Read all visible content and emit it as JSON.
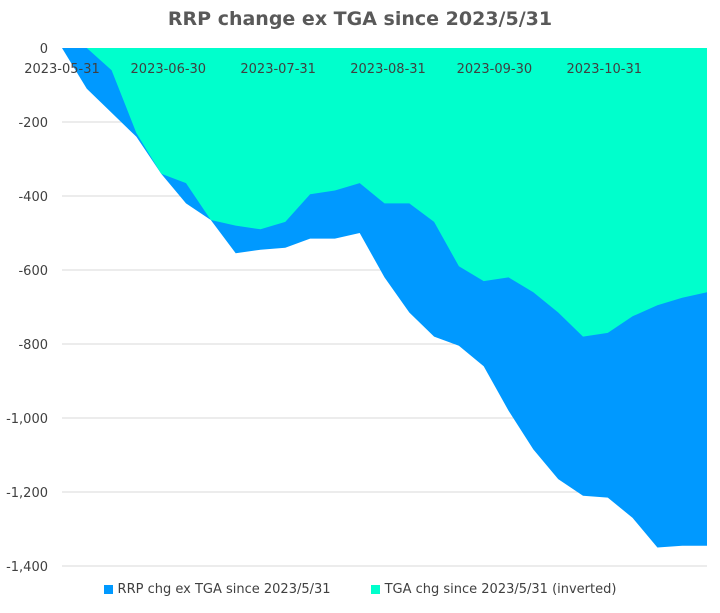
{
  "chart_data": {
    "type": "area",
    "title": "RRP change ex TGA since 2023/5/31",
    "xlabel": "",
    "ylabel": "",
    "ylim": [
      -1400,
      0
    ],
    "yticks": [
      0,
      -200,
      -400,
      -600,
      -800,
      -1000,
      -1200,
      -1400
    ],
    "ytick_labels": [
      "0",
      "-200",
      "-400",
      "-600",
      "-800",
      "-1,000",
      "-1,200",
      "-1,400"
    ],
    "xtick_labels": [
      "2023-05-31",
      "2023-06-30",
      "2023-07-31",
      "2023-08-31",
      "2023-09-30",
      "2023-10-31"
    ],
    "grid": "horizontal",
    "legend_position": "bottom",
    "x": [
      "2023-05-31",
      "2023-06-07",
      "2023-06-14",
      "2023-06-21",
      "2023-06-28",
      "2023-07-05",
      "2023-07-12",
      "2023-07-19",
      "2023-07-26",
      "2023-08-02",
      "2023-08-09",
      "2023-08-16",
      "2023-08-23",
      "2023-08-30",
      "2023-09-06",
      "2023-09-13",
      "2023-09-20",
      "2023-09-27",
      "2023-10-04",
      "2023-10-11",
      "2023-10-18",
      "2023-10-25",
      "2023-11-01",
      "2023-11-08",
      "2023-11-15",
      "2023-11-22",
      "2023-11-29"
    ],
    "series": [
      {
        "name": "RRP chg ex TGA since 2023/5/31",
        "color": "#0099FF",
        "values": [
          0,
          -110,
          -175,
          -240,
          -340,
          -420,
          -465,
          -555,
          -545,
          -540,
          -515,
          -515,
          -500,
          -620,
          -715,
          -780,
          -805,
          -860,
          -980,
          -1085,
          -1165,
          -1210,
          -1215,
          -1270,
          -1350,
          -1345,
          -1345
        ]
      },
      {
        "name": "TGA chg since 2023/5/31 (inverted)",
        "color": "#00FFCC",
        "values": [
          0,
          0,
          -60,
          -230,
          -340,
          -365,
          -465,
          -480,
          -490,
          -470,
          -395,
          -385,
          -365,
          -420,
          -420,
          -470,
          -590,
          -630,
          -620,
          -660,
          -715,
          -780,
          -770,
          -725,
          -695,
          -675,
          -660
        ]
      }
    ]
  }
}
